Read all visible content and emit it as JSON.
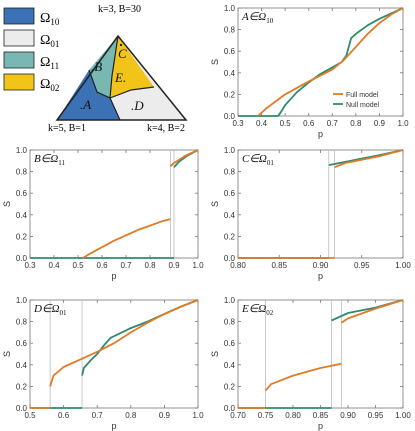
{
  "legend": {
    "items": [
      {
        "label": "Ω",
        "sub": "10",
        "color": "#3a72b5"
      },
      {
        "label": "Ω",
        "sub": "01",
        "color": "#ececec"
      },
      {
        "label": "Ω",
        "sub": "11",
        "color": "#79b7b3"
      },
      {
        "label": "Ω",
        "sub": "02",
        "color": "#f2c318"
      }
    ]
  },
  "triangle": {
    "top_label": "k=3, B=30",
    "left_label": "k=5, B=1",
    "right_label": "k=4, B=2",
    "region_labels": [
      ".A",
      ".B",
      "C",
      "E.",
      ".D"
    ]
  },
  "colors": {
    "full": "#e07b26",
    "null": "#2f8a6e",
    "gray": "#c4c4c4",
    "axis": "#777777"
  },
  "chart_data": [
    {
      "type": "line",
      "panel": "A",
      "title_prefix": "A∈Ω",
      "title_sub": "10",
      "xlabel": "p",
      "ylabel": "S",
      "xlim": [
        0.3,
        1.0
      ],
      "ylim": [
        0,
        1.0
      ],
      "xticks": [
        "0.3",
        "0.4",
        "0.5",
        "0.6",
        "0.7",
        "0.8",
        "0.9",
        "1.0"
      ],
      "yticks": [
        "0.0",
        "0.2",
        "0.4",
        "0.6",
        "0.8",
        "1.0"
      ],
      "legend": [
        "Full model",
        "Null model"
      ],
      "vlines": [],
      "series": [
        {
          "name": "Full model",
          "segments": [
            [
              [
                0.385,
                0
              ],
              [
                0.42,
                0.07
              ],
              [
                0.5,
                0.2
              ],
              [
                0.6,
                0.32
              ],
              [
                0.7,
                0.43
              ],
              [
                0.75,
                0.52
              ],
              [
                0.8,
                0.64
              ],
              [
                0.85,
                0.76
              ],
              [
                0.9,
                0.86
              ],
              [
                0.95,
                0.94
              ],
              [
                1.0,
                1.0
              ]
            ]
          ]
        },
        {
          "name": "Null model",
          "segments": [
            [
              [
                0.3,
                0
              ],
              [
                0.47,
                0
              ],
              [
                0.48,
                0.03
              ],
              [
                0.5,
                0.1
              ],
              [
                0.55,
                0.22
              ],
              [
                0.6,
                0.31
              ],
              [
                0.65,
                0.39
              ],
              [
                0.7,
                0.45
              ],
              [
                0.74,
                0.5
              ],
              [
                0.76,
                0.56
              ],
              [
                0.78,
                0.72
              ],
              [
                0.8,
                0.76
              ],
              [
                0.85,
                0.84
              ],
              [
                0.9,
                0.9
              ],
              [
                0.95,
                0.95
              ],
              [
                1.0,
                1.0
              ]
            ]
          ]
        }
      ]
    },
    {
      "type": "line",
      "panel": "B",
      "title_prefix": "B∈Ω",
      "title_sub": "11",
      "xlabel": "p",
      "ylabel": "S",
      "xlim": [
        0.3,
        1.0
      ],
      "ylim": [
        0,
        1.0
      ],
      "xticks": [
        "0.3",
        "0.4",
        "0.5",
        "0.6",
        "0.7",
        "0.8",
        "0.9",
        "1.0"
      ],
      "yticks": [
        "0.0",
        "0.2",
        "0.4",
        "0.6",
        "0.8",
        "1.0"
      ],
      "legend": [],
      "vlines": [
        0.885,
        0.9
      ],
      "series": [
        {
          "name": "Full model",
          "segments": [
            [
              [
                0.52,
                0
              ],
              [
                0.55,
                0.04
              ],
              [
                0.6,
                0.1
              ],
              [
                0.65,
                0.16
              ],
              [
                0.7,
                0.21
              ],
              [
                0.75,
                0.26
              ],
              [
                0.8,
                0.3
              ],
              [
                0.85,
                0.34
              ],
              [
                0.885,
                0.36
              ]
            ],
            [
              [
                0.885,
                0.85
              ],
              [
                0.9,
                0.88
              ],
              [
                0.95,
                0.95
              ],
              [
                1.0,
                1.0
              ]
            ]
          ]
        },
        {
          "name": "Null model",
          "segments": [
            [
              [
                0.3,
                0
              ],
              [
                0.9,
                0
              ]
            ],
            [
              [
                0.9,
                0.84
              ],
              [
                0.92,
                0.89
              ],
              [
                0.95,
                0.94
              ],
              [
                1.0,
                1.0
              ]
            ]
          ]
        }
      ]
    },
    {
      "type": "line",
      "panel": "C",
      "title_prefix": "C∈Ω",
      "title_sub": "01",
      "xlabel": "p",
      "ylabel": "S",
      "xlim": [
        0.8,
        1.0
      ],
      "ylim": [
        0,
        1.0
      ],
      "xticks": [
        "0.80",
        "0.85",
        "0.90",
        "0.95",
        "1.00"
      ],
      "yticks": [
        "0.0",
        "0.2",
        "0.4",
        "0.6",
        "0.8",
        "1.0"
      ],
      "legend": [],
      "vlines": [
        0.91,
        0.917
      ],
      "series": [
        {
          "name": "Full model",
          "segments": [
            [
              [
                0.8,
                0
              ],
              [
                0.917,
                0
              ]
            ],
            [
              [
                0.917,
                0.84
              ],
              [
                0.93,
                0.88
              ],
              [
                0.95,
                0.91
              ],
              [
                0.97,
                0.94
              ],
              [
                1.0,
                1.0
              ]
            ]
          ]
        },
        {
          "name": "Null model",
          "segments": [
            [
              [
                0.8,
                0
              ],
              [
                0.91,
                0
              ]
            ],
            [
              [
                0.91,
                0.86
              ],
              [
                0.93,
                0.89
              ],
              [
                0.95,
                0.92
              ],
              [
                0.97,
                0.95
              ],
              [
                1.0,
                1.0
              ]
            ]
          ]
        }
      ]
    },
    {
      "type": "line",
      "panel": "D",
      "title_prefix": "D∈Ω",
      "title_sub": "01",
      "xlabel": "p",
      "ylabel": "S",
      "xlim": [
        0.5,
        1.0
      ],
      "ylim": [
        0,
        1.0
      ],
      "xticks": [
        "0.5",
        "0.6",
        "0.7",
        "0.8",
        "0.9",
        "1.0"
      ],
      "yticks": [
        "0.0",
        "0.2",
        "0.4",
        "0.6",
        "0.8",
        "1.0"
      ],
      "legend": [],
      "vlines": [
        0.56,
        0.655
      ],
      "series": [
        {
          "name": "Full model",
          "segments": [
            [
              [
                0.5,
                0
              ],
              [
                0.56,
                0
              ]
            ],
            [
              [
                0.56,
                0.2
              ],
              [
                0.57,
                0.3
              ],
              [
                0.6,
                0.38
              ],
              [
                0.65,
                0.45
              ],
              [
                0.7,
                0.52
              ],
              [
                0.75,
                0.6
              ],
              [
                0.8,
                0.7
              ],
              [
                0.85,
                0.79
              ],
              [
                0.9,
                0.87
              ],
              [
                0.95,
                0.94
              ],
              [
                1.0,
                1.0
              ]
            ]
          ]
        },
        {
          "name": "Null model",
          "segments": [
            [
              [
                0.5,
                0
              ],
              [
                0.655,
                0
              ]
            ],
            [
              [
                0.655,
                0.3
              ],
              [
                0.66,
                0.37
              ],
              [
                0.68,
                0.44
              ],
              [
                0.7,
                0.5
              ],
              [
                0.72,
                0.58
              ],
              [
                0.74,
                0.65
              ],
              [
                0.8,
                0.74
              ],
              [
                0.85,
                0.8
              ],
              [
                0.9,
                0.87
              ],
              [
                0.95,
                0.94
              ],
              [
                1.0,
                1.0
              ]
            ]
          ]
        }
      ]
    },
    {
      "type": "line",
      "panel": "E",
      "title_prefix": "E∈Ω",
      "title_sub": "02",
      "xlabel": "p",
      "ylabel": "S",
      "xlim": [
        0.7,
        1.0
      ],
      "ylim": [
        0,
        1.0
      ],
      "xticks": [
        "0.70",
        "0.75",
        "0.80",
        "0.85",
        "0.90",
        "0.95",
        "1.00"
      ],
      "yticks": [
        "0.0",
        "0.2",
        "0.4",
        "0.6",
        "0.8",
        "1.0"
      ],
      "legend": [],
      "vlines": [
        0.75,
        0.87,
        0.888
      ],
      "series": [
        {
          "name": "Full model",
          "segments": [
            [
              [
                0.7,
                0
              ],
              [
                0.75,
                0
              ]
            ],
            [
              [
                0.75,
                0.16
              ],
              [
                0.76,
                0.22
              ],
              [
                0.8,
                0.3
              ],
              [
                0.85,
                0.37
              ],
              [
                0.888,
                0.41
              ]
            ],
            [
              [
                0.888,
                0.79
              ],
              [
                0.9,
                0.83
              ],
              [
                0.95,
                0.92
              ],
              [
                1.0,
                1.0
              ]
            ]
          ]
        },
        {
          "name": "Null model",
          "segments": [
            [
              [
                0.7,
                0
              ],
              [
                0.87,
                0
              ]
            ],
            [
              [
                0.87,
                0.81
              ],
              [
                0.9,
                0.88
              ],
              [
                0.95,
                0.93
              ],
              [
                1.0,
                1.0
              ]
            ]
          ]
        }
      ]
    }
  ]
}
